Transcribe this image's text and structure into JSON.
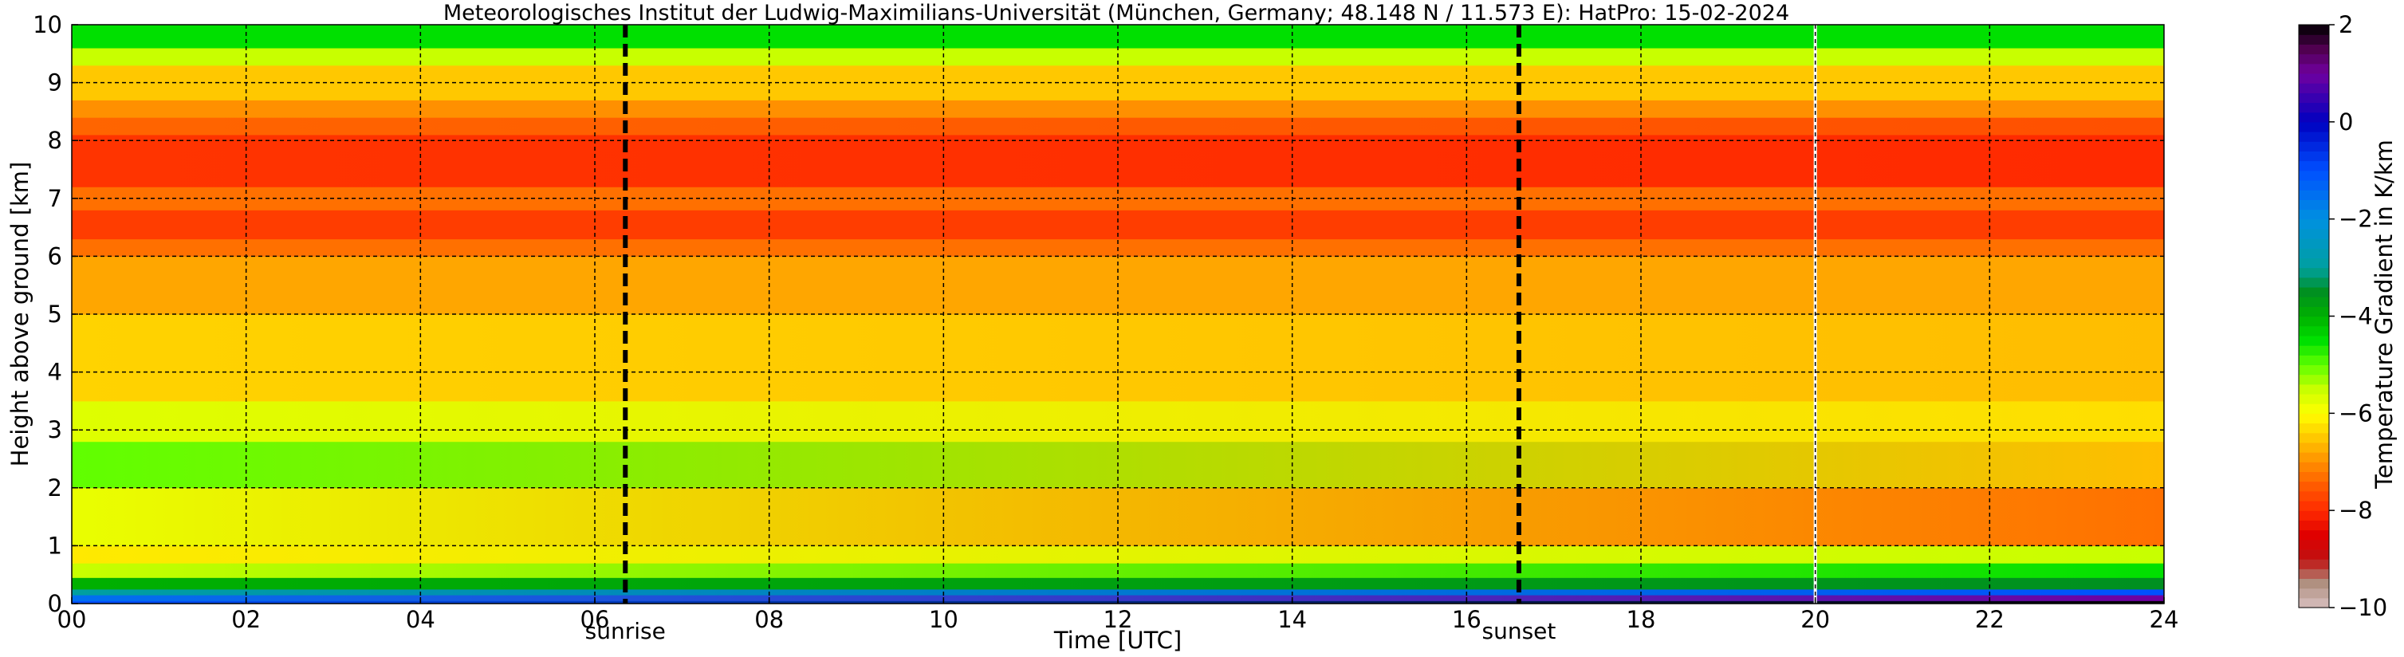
{
  "chart_data": {
    "type": "heatmap",
    "title": "Meteorologisches Institut der Ludwig-Maximilians-Universität (München, Germany; 48.148 N / 11.573 E):    HatPro: 15-02-2024",
    "xlabel": "Time [UTC]",
    "ylabel": "Height above ground [km]",
    "xlim": [
      0,
      24
    ],
    "ylim": [
      0,
      10
    ],
    "x_ticks": [
      0,
      2,
      4,
      6,
      8,
      10,
      12,
      14,
      16,
      18,
      20,
      22,
      24
    ],
    "x_tick_labels": [
      "00",
      "02",
      "04",
      "06",
      "08",
      "10",
      "12",
      "14",
      "16",
      "18",
      "20",
      "22",
      "24"
    ],
    "y_ticks": [
      0,
      1,
      2,
      3,
      4,
      5,
      6,
      7,
      8,
      9,
      10
    ],
    "y_tick_labels": [
      "0",
      "1",
      "2",
      "3",
      "4",
      "5",
      "6",
      "7",
      "8",
      "9",
      "10"
    ],
    "grid": true,
    "colorbar": {
      "label": "Temperature Gradient in K/km",
      "range": [
        -10,
        2
      ],
      "ticks": [
        2,
        0,
        -2,
        -4,
        -6,
        -8,
        -10
      ],
      "tick_labels": [
        "2",
        "0",
        "−2",
        "−4",
        "−6",
        "−8",
        "−10"
      ],
      "palette": [
        {
          "value": -10,
          "color": "#d8c0c0"
        },
        {
          "value": -9.5,
          "color": "#b09080"
        },
        {
          "value": -9,
          "color": "#c01010"
        },
        {
          "value": -8.5,
          "color": "#e00000"
        },
        {
          "value": -8,
          "color": "#ff2a00"
        },
        {
          "value": -7.5,
          "color": "#ff5a00"
        },
        {
          "value": -7,
          "color": "#ff9000"
        },
        {
          "value": -6.5,
          "color": "#ffc800"
        },
        {
          "value": -6,
          "color": "#ffff00"
        },
        {
          "value": -5.5,
          "color": "#c8ff00"
        },
        {
          "value": -5,
          "color": "#60ff00"
        },
        {
          "value": -4.5,
          "color": "#00e000"
        },
        {
          "value": -4,
          "color": "#00b000"
        },
        {
          "value": -3.5,
          "color": "#009020"
        },
        {
          "value": -3,
          "color": "#00a0a0"
        },
        {
          "value": -2,
          "color": "#0090e0"
        },
        {
          "value": -1,
          "color": "#0050ff"
        },
        {
          "value": 0,
          "color": "#0000c0"
        },
        {
          "value": 1,
          "color": "#7000a0"
        },
        {
          "value": 1.5,
          "color": "#500050"
        },
        {
          "value": 2,
          "color": "#000000"
        }
      ]
    },
    "markers": [
      {
        "label": "sunrise",
        "time": 6.35
      },
      {
        "label": "sunset",
        "time": 16.6
      }
    ],
    "data_gap_time": 20.0,
    "layers": [
      {
        "bottom_km": 0.0,
        "top_km": 0.05,
        "gradient_start": -1,
        "gradient_end": 2
      },
      {
        "bottom_km": 0.05,
        "top_km": 0.15,
        "gradient_start": -1.5,
        "gradient_end": 1
      },
      {
        "bottom_km": 0.15,
        "top_km": 0.25,
        "gradient_start": -3,
        "gradient_end": -1
      },
      {
        "bottom_km": 0.25,
        "top_km": 0.45,
        "gradient_start": -4,
        "gradient_end": -3.5
      },
      {
        "bottom_km": 0.45,
        "top_km": 0.7,
        "gradient_start": -5.5,
        "gradient_end": -4.5
      },
      {
        "bottom_km": 0.7,
        "top_km": 1.0,
        "gradient_start": -6.2,
        "gradient_end": -5.5
      },
      {
        "bottom_km": 1.0,
        "top_km": 2.0,
        "gradient_start": -5.8,
        "gradient_end": -7.3
      },
      {
        "bottom_km": 2.0,
        "top_km": 2.8,
        "gradient_start": -5.0,
        "gradient_end": -6.6
      },
      {
        "bottom_km": 2.8,
        "top_km": 3.5,
        "gradient_start": -5.7,
        "gradient_end": -6.3
      },
      {
        "bottom_km": 3.5,
        "top_km": 5.0,
        "gradient_start": -6.4,
        "gradient_end": -6.6
      },
      {
        "bottom_km": 5.0,
        "top_km": 6.0,
        "gradient_start": -6.8,
        "gradient_end": -6.8
      },
      {
        "bottom_km": 6.0,
        "top_km": 6.3,
        "gradient_start": -7.3,
        "gradient_end": -7.3
      },
      {
        "bottom_km": 6.3,
        "top_km": 6.8,
        "gradient_start": -7.8,
        "gradient_end": -7.8
      },
      {
        "bottom_km": 6.8,
        "top_km": 7.2,
        "gradient_start": -7.3,
        "gradient_end": -7.3
      },
      {
        "bottom_km": 7.2,
        "top_km": 8.1,
        "gradient_start": -7.9,
        "gradient_end": -8.0
      },
      {
        "bottom_km": 8.1,
        "top_km": 8.4,
        "gradient_start": -7.4,
        "gradient_end": -7.6
      },
      {
        "bottom_km": 8.4,
        "top_km": 8.7,
        "gradient_start": -7.0,
        "gradient_end": -7.0
      },
      {
        "bottom_km": 8.7,
        "top_km": 9.3,
        "gradient_start": -6.5,
        "gradient_end": -6.5
      },
      {
        "bottom_km": 9.3,
        "top_km": 9.6,
        "gradient_start": -5.5,
        "gradient_end": -5.5
      },
      {
        "bottom_km": 9.6,
        "top_km": 10.0,
        "gradient_start": -4.5,
        "gradient_end": -4.5
      }
    ]
  }
}
